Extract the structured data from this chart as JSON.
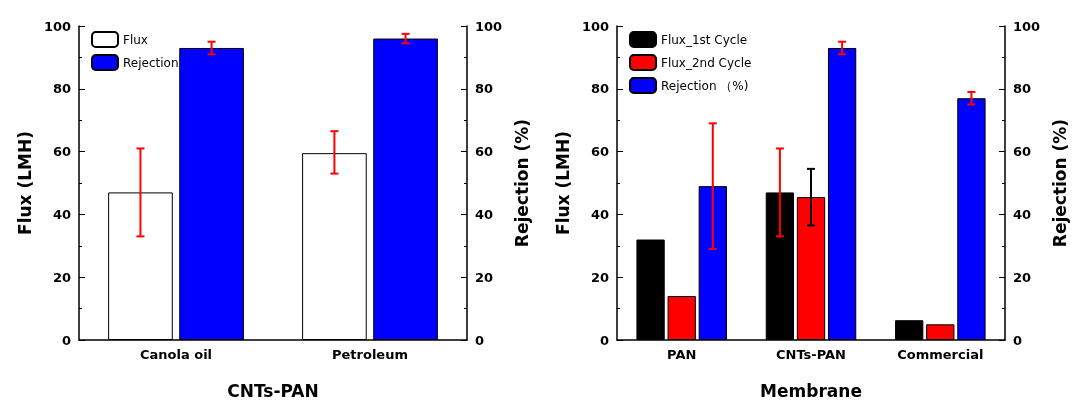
{
  "chart_data": [
    {
      "type": "bar",
      "categories": [
        "Canola oil",
        "Petroleum"
      ],
      "xlabel": "CNTs-PAN",
      "ylabel": "Flux (LMH)",
      "y2label": "Rejection (%)",
      "series": [
        {
          "name": "Flux",
          "color": "#ffffff",
          "values": [
            47,
            59.5
          ],
          "errors": [
            [
              33,
              61
            ],
            [
              53,
              66.5
            ]
          ]
        },
        {
          "name": "Rejection",
          "color": "#0000ff",
          "axis": "y2",
          "values": [
            93,
            96
          ],
          "errors": [
            [
              91,
              95
            ],
            [
              94.5,
              97.5
            ]
          ]
        }
      ],
      "ylim": [
        0,
        100
      ],
      "yticks": [
        0,
        20,
        40,
        60,
        80,
        100
      ],
      "y2lim": [
        0,
        100
      ],
      "y2ticks": [
        0,
        20,
        40,
        60,
        80,
        100
      ],
      "grid": false,
      "legend": "top left"
    },
    {
      "type": "bar",
      "categories": [
        "PAN",
        "CNTs-PAN",
        "Commercial"
      ],
      "xlabel": "Membrane",
      "ylabel": "Flux (LMH)",
      "y2label": "Rejection (%)",
      "series": [
        {
          "name": "Flux_1st Cycle",
          "color": "#000000",
          "values": [
            32,
            47,
            6.3
          ],
          "errors": [
            null,
            [
              33,
              61
            ],
            null
          ]
        },
        {
          "name": "Flux_2nd Cycle",
          "color": "#ff0000",
          "values": [
            14,
            45.5,
            5
          ],
          "errors": [
            null,
            [
              36.5,
              54.5
            ],
            null
          ]
        },
        {
          "name": "Rejection （%)",
          "color": "#0000ff",
          "axis": "y2",
          "values": [
            49,
            93,
            77
          ],
          "errors": [
            [
              29,
              69
            ],
            [
              91,
              95
            ],
            [
              75,
              79
            ]
          ]
        }
      ],
      "ylim": [
        0,
        100
      ],
      "yticks": [
        0,
        20,
        40,
        60,
        80,
        100
      ],
      "y2lim": [
        0,
        100
      ],
      "y2ticks": [
        0,
        20,
        40,
        60,
        80,
        100
      ],
      "grid": false,
      "legend": "top left"
    }
  ]
}
